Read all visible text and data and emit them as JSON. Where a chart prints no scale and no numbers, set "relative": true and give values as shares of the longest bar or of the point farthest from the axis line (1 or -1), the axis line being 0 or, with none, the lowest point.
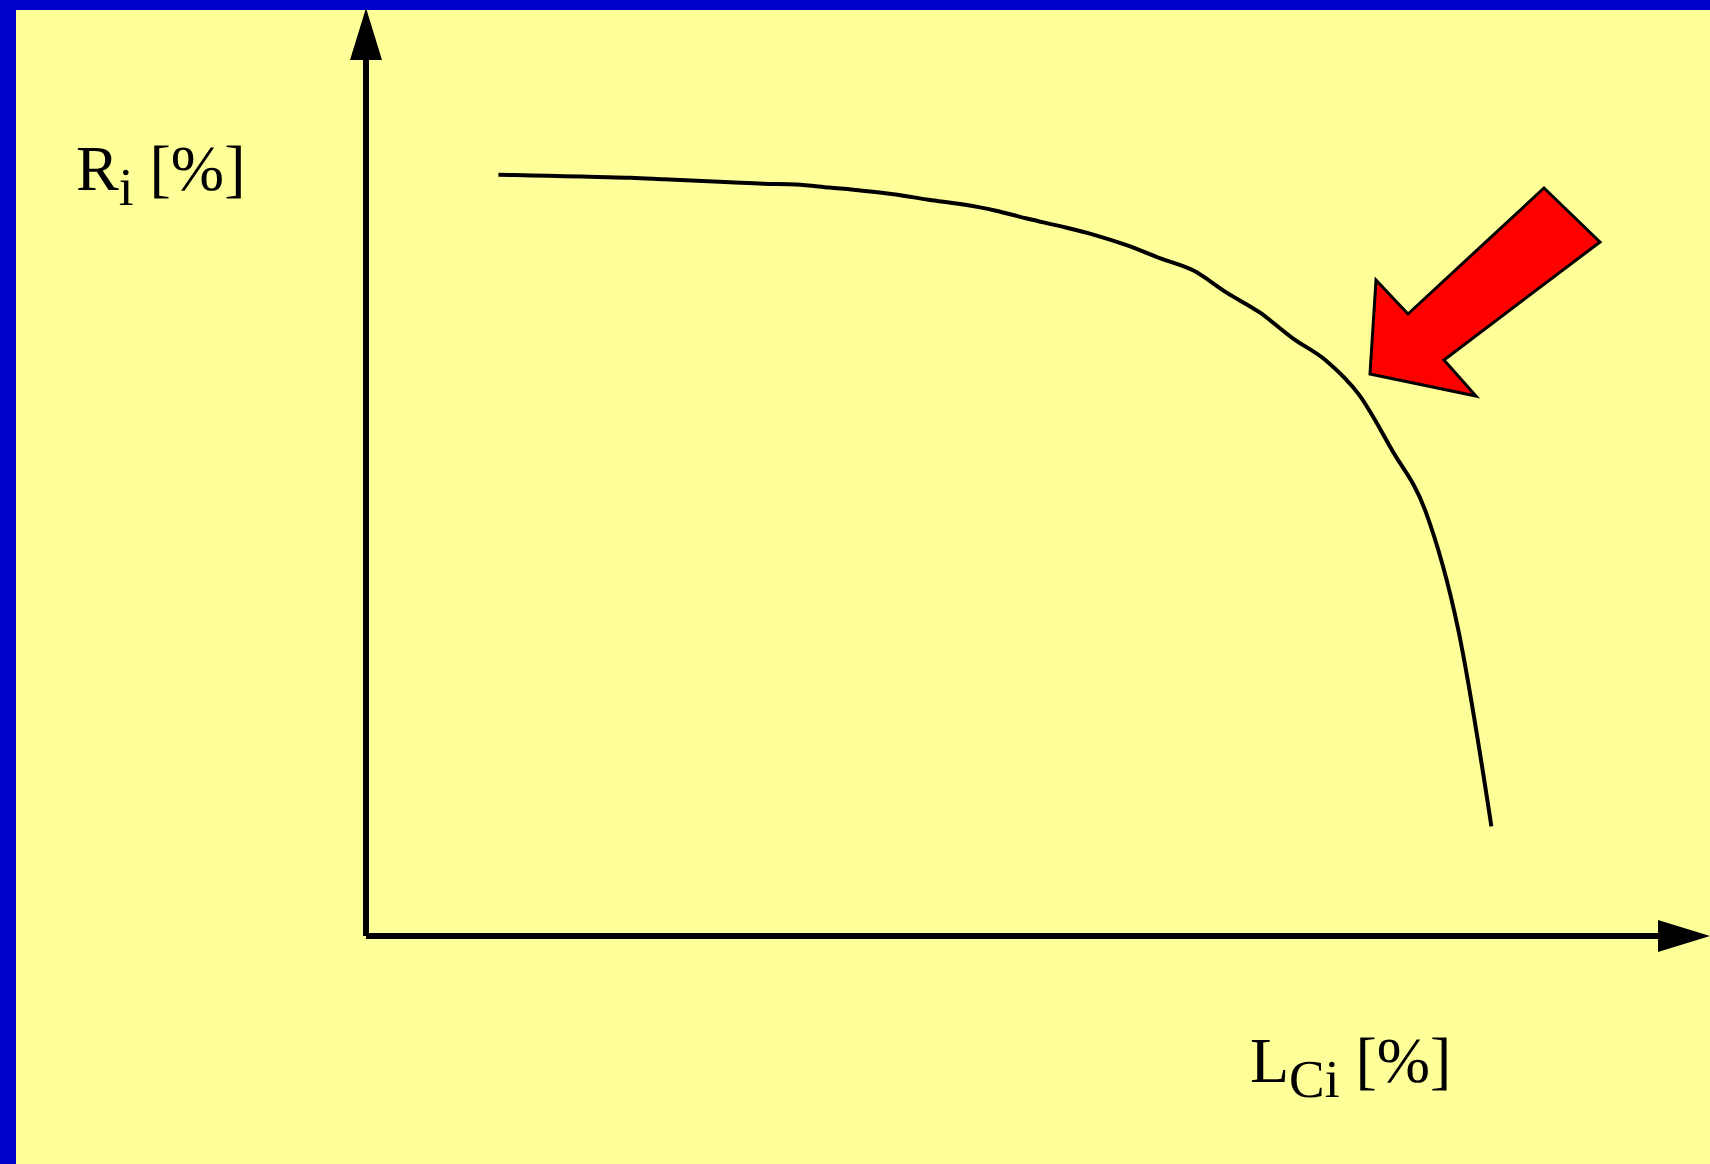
{
  "chart_data": {
    "type": "line",
    "xlabel": "L$_{Ci}$ [%]",
    "ylabel": "R$_{i}$ [%]",
    "relative": true,
    "marker": "none",
    "line_style": "solid",
    "color": "#000000",
    "categories": [
      null,
      null,
      null,
      null,
      null,
      null,
      null,
      null,
      null,
      null,
      null,
      null,
      null,
      null,
      null,
      null,
      null,
      null,
      null,
      null,
      null,
      null,
      null,
      null,
      null,
      null,
      null,
      null,
      null,
      null,
      null,
      null,
      null,
      null,
      null,
      null,
      null,
      null,
      null,
      null,
      null
    ],
    "values": [
      null,
      null,
      null,
      null,
      1,
      0.999,
      0.998,
      0.997,
      0.996,
      0.994,
      0.992,
      0.99,
      0.988,
      0.987,
      0.983,
      0.979,
      0.974,
      0.967,
      0.961,
      0.953,
      0.942,
      0.932,
      0.921,
      0.907,
      0.89,
      0.874,
      0.845,
      0.819,
      0.785,
      0.756,
      0.711,
      0.638,
      0.559,
      0.402,
      0.144,
      null,
      null,
      null,
      null,
      null,
      null
    ]
  }
}
